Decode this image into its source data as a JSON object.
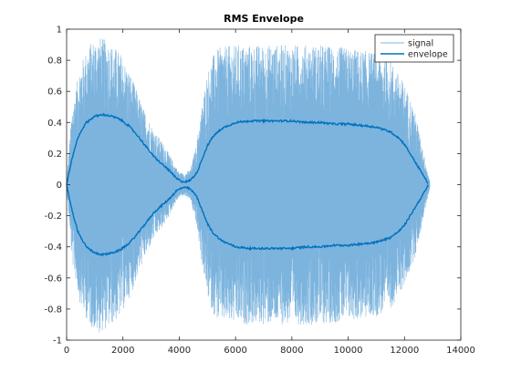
{
  "chart_data": {
    "type": "line",
    "title": "RMS Envelope",
    "xlabel": "",
    "ylabel": "",
    "xlim": [
      0,
      14000
    ],
    "ylim": [
      -1,
      1
    ],
    "xticks": [
      0,
      2000,
      4000,
      6000,
      8000,
      10000,
      12000,
      14000
    ],
    "xtick_labels": [
      "0",
      "2000",
      "4000",
      "6000",
      "8000",
      "10000",
      "12000",
      "14000"
    ],
    "yticks": [
      -1,
      -0.8,
      -0.6,
      -0.4,
      -0.2,
      0,
      0.2,
      0.4,
      0.6,
      0.8,
      1
    ],
    "ytick_labels": [
      "-1",
      "-0.8",
      "-0.6",
      "-0.4",
      "-0.2",
      "0",
      "0.2",
      "0.4",
      "0.6",
      "0.8",
      "1"
    ],
    "grid": false,
    "legend_position": "top-right",
    "series": [
      {
        "name": "signal",
        "color": "#7db4de",
        "style": "dense-oscillation",
        "peak_envelope": {
          "x": [
            0,
            200,
            500,
            800,
            1100,
            1500,
            1900,
            2300,
            2700,
            3100,
            3500,
            3800,
            4000,
            4200,
            4400,
            4600,
            4800,
            5000,
            5200,
            5400,
            6000,
            7000,
            8000,
            9000,
            10000,
            11000,
            11500,
            12000,
            12400,
            12800,
            12900
          ],
          "y": [
            0.02,
            0.5,
            0.78,
            0.9,
            0.96,
            0.92,
            0.85,
            0.7,
            0.5,
            0.35,
            0.25,
            0.14,
            0.08,
            0.07,
            0.1,
            0.25,
            0.5,
            0.72,
            0.83,
            0.88,
            0.9,
            0.9,
            0.9,
            0.9,
            0.88,
            0.85,
            0.8,
            0.65,
            0.45,
            0.1,
            0.02
          ]
        }
      },
      {
        "name": "envelope",
        "color": "#0072bd",
        "style": "symmetric-envelope",
        "x": [
          0,
          100,
          200,
          300,
          400,
          500,
          700,
          1000,
          1300,
          1600,
          1900,
          2200,
          2500,
          2800,
          3100,
          3400,
          3600,
          3800,
          3900,
          4000,
          4100,
          4200,
          4300,
          4400,
          4500,
          4600,
          4700,
          4800,
          5000,
          5200,
          5500,
          6000,
          6500,
          7000,
          7500,
          8000,
          8500,
          9000,
          9500,
          10000,
          10500,
          11000,
          11500,
          11800,
          12000,
          12200,
          12400,
          12600,
          12700,
          12800,
          12850
        ],
        "y": [
          0.0,
          0.09,
          0.17,
          0.24,
          0.3,
          0.34,
          0.4,
          0.44,
          0.45,
          0.44,
          0.42,
          0.38,
          0.32,
          0.25,
          0.18,
          0.13,
          0.1,
          0.06,
          0.04,
          0.03,
          0.02,
          0.02,
          0.02,
          0.03,
          0.05,
          0.07,
          0.11,
          0.16,
          0.25,
          0.31,
          0.36,
          0.4,
          0.41,
          0.41,
          0.41,
          0.41,
          0.4,
          0.4,
          0.39,
          0.39,
          0.38,
          0.37,
          0.34,
          0.3,
          0.26,
          0.2,
          0.14,
          0.08,
          0.05,
          0.02,
          0.0
        ]
      }
    ]
  }
}
